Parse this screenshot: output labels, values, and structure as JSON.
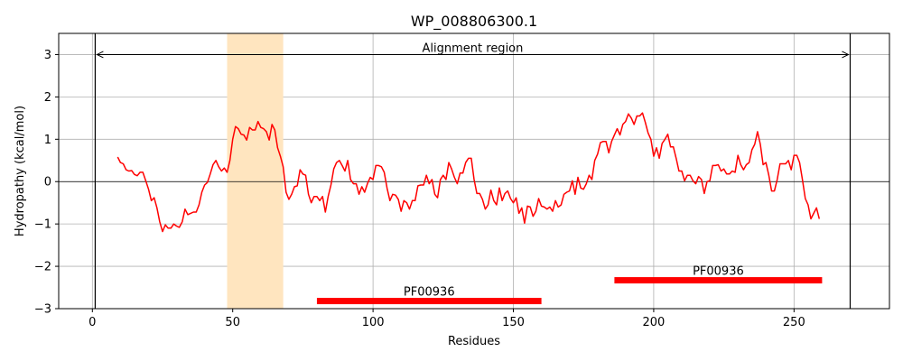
{
  "chart_data": {
    "type": "line",
    "title": "WP_008806300.1",
    "xlabel": "Residues",
    "ylabel": "Hydropathy (kcal/mol)",
    "xlim": [
      -12,
      284
    ],
    "ylim": [
      -3,
      3.5
    ],
    "xticks": [
      0,
      50,
      100,
      150,
      200,
      250
    ],
    "yticks": [
      -3,
      -2,
      -1,
      0,
      1,
      2,
      3
    ],
    "ytick_labels": [
      "−3",
      "−2",
      "−1",
      "0",
      "1",
      "2",
      "3"
    ],
    "grid": true,
    "line_color": "#ff0000",
    "highlight_color": "#ffe5bf",
    "domain_color": "#ff0000",
    "highlight_region": [
      48,
      68
    ],
    "alignment_region": {
      "label": "Alignment region",
      "start": 1,
      "end": 270
    },
    "domains": [
      {
        "label": "PF00936",
        "start": 80,
        "end": 160,
        "y": -2.82
      },
      {
        "label": "PF00936",
        "start": 186,
        "end": 260,
        "y": -2.33
      }
    ],
    "series": [
      {
        "points": [
          [
            9,
            0.58
          ],
          [
            10,
            0.45
          ],
          [
            11,
            0.42
          ],
          [
            12,
            0.28
          ],
          [
            13,
            0.25
          ],
          [
            14,
            0.26
          ],
          [
            15,
            0.17
          ],
          [
            16,
            0.14
          ],
          [
            17,
            0.22
          ],
          [
            18,
            0.22
          ],
          [
            19,
            0.02
          ],
          [
            20,
            -0.18
          ],
          [
            21,
            -0.45
          ],
          [
            22,
            -0.38
          ],
          [
            23,
            -0.62
          ],
          [
            24,
            -0.95
          ],
          [
            25,
            -1.18
          ],
          [
            26,
            -1.02
          ],
          [
            27,
            -1.1
          ],
          [
            28,
            -1.1
          ],
          [
            29,
            -1.0
          ],
          [
            30,
            -1.05
          ],
          [
            31,
            -1.08
          ],
          [
            32,
            -0.95
          ],
          [
            33,
            -0.65
          ],
          [
            34,
            -0.78
          ],
          [
            35,
            -0.75
          ],
          [
            36,
            -0.72
          ],
          [
            37,
            -0.72
          ],
          [
            38,
            -0.55
          ],
          [
            39,
            -0.25
          ],
          [
            40,
            -0.08
          ],
          [
            41,
            -0.02
          ],
          [
            42,
            0.18
          ],
          [
            43,
            0.4
          ],
          [
            44,
            0.5
          ],
          [
            45,
            0.35
          ],
          [
            46,
            0.25
          ],
          [
            47,
            0.32
          ],
          [
            48,
            0.22
          ],
          [
            49,
            0.5
          ],
          [
            50,
            1.0
          ],
          [
            51,
            1.3
          ],
          [
            52,
            1.25
          ],
          [
            53,
            1.12
          ],
          [
            54,
            1.1
          ],
          [
            55,
            0.98
          ],
          [
            56,
            1.28
          ],
          [
            57,
            1.22
          ],
          [
            58,
            1.22
          ],
          [
            59,
            1.42
          ],
          [
            60,
            1.28
          ],
          [
            61,
            1.25
          ],
          [
            62,
            1.18
          ],
          [
            63,
            0.98
          ],
          [
            64,
            1.35
          ],
          [
            65,
            1.22
          ],
          [
            66,
            0.8
          ],
          [
            67,
            0.6
          ],
          [
            68,
            0.35
          ],
          [
            69,
            -0.25
          ],
          [
            70,
            -0.42
          ],
          [
            71,
            -0.3
          ],
          [
            72,
            -0.12
          ],
          [
            73,
            -0.1
          ],
          [
            74,
            0.28
          ],
          [
            75,
            0.18
          ],
          [
            76,
            0.15
          ],
          [
            77,
            -0.3
          ],
          [
            78,
            -0.5
          ],
          [
            79,
            -0.35
          ],
          [
            80,
            -0.35
          ],
          [
            81,
            -0.45
          ],
          [
            82,
            -0.35
          ],
          [
            83,
            -0.72
          ],
          [
            84,
            -0.35
          ],
          [
            85,
            -0.08
          ],
          [
            86,
            0.3
          ],
          [
            87,
            0.45
          ],
          [
            88,
            0.5
          ],
          [
            89,
            0.38
          ],
          [
            90,
            0.25
          ],
          [
            91,
            0.5
          ],
          [
            92,
            0.05
          ],
          [
            93,
            -0.05
          ],
          [
            94,
            -0.05
          ],
          [
            95,
            -0.3
          ],
          [
            96,
            -0.12
          ],
          [
            97,
            -0.25
          ],
          [
            98,
            -0.05
          ],
          [
            99,
            0.1
          ],
          [
            100,
            0.05
          ],
          [
            101,
            0.38
          ],
          [
            102,
            0.38
          ],
          [
            103,
            0.35
          ],
          [
            104,
            0.22
          ],
          [
            105,
            -0.15
          ],
          [
            106,
            -0.45
          ],
          [
            107,
            -0.3
          ],
          [
            108,
            -0.32
          ],
          [
            109,
            -0.42
          ],
          [
            110,
            -0.7
          ],
          [
            111,
            -0.45
          ],
          [
            112,
            -0.5
          ],
          [
            113,
            -0.65
          ],
          [
            114,
            -0.45
          ],
          [
            115,
            -0.45
          ],
          [
            116,
            -0.1
          ],
          [
            117,
            -0.08
          ],
          [
            118,
            -0.08
          ],
          [
            119,
            0.15
          ],
          [
            120,
            -0.05
          ],
          [
            121,
            0.05
          ],
          [
            122,
            -0.3
          ],
          [
            123,
            -0.38
          ],
          [
            124,
            0.05
          ],
          [
            125,
            0.15
          ],
          [
            126,
            0.05
          ],
          [
            127,
            0.45
          ],
          [
            128,
            0.3
          ],
          [
            129,
            0.1
          ],
          [
            130,
            -0.05
          ],
          [
            131,
            0.2
          ],
          [
            132,
            0.2
          ],
          [
            133,
            0.45
          ],
          [
            134,
            0.55
          ],
          [
            135,
            0.55
          ],
          [
            136,
            0.05
          ],
          [
            137,
            -0.28
          ],
          [
            138,
            -0.28
          ],
          [
            139,
            -0.42
          ],
          [
            140,
            -0.65
          ],
          [
            141,
            -0.55
          ],
          [
            142,
            -0.2
          ],
          [
            143,
            -0.45
          ],
          [
            144,
            -0.55
          ],
          [
            145,
            -0.15
          ],
          [
            146,
            -0.45
          ],
          [
            147,
            -0.28
          ],
          [
            148,
            -0.22
          ],
          [
            149,
            -0.4
          ],
          [
            150,
            -0.5
          ],
          [
            151,
            -0.38
          ],
          [
            152,
            -0.75
          ],
          [
            153,
            -0.62
          ],
          [
            154,
            -0.98
          ],
          [
            155,
            -0.58
          ],
          [
            156,
            -0.6
          ],
          [
            157,
            -0.82
          ],
          [
            158,
            -0.7
          ],
          [
            159,
            -0.4
          ],
          [
            160,
            -0.58
          ],
          [
            161,
            -0.6
          ],
          [
            162,
            -0.65
          ],
          [
            163,
            -0.6
          ],
          [
            164,
            -0.7
          ],
          [
            165,
            -0.45
          ],
          [
            166,
            -0.6
          ],
          [
            167,
            -0.55
          ],
          [
            168,
            -0.3
          ],
          [
            169,
            -0.25
          ],
          [
            170,
            -0.22
          ],
          [
            171,
            0.02
          ],
          [
            172,
            -0.3
          ],
          [
            173,
            0.1
          ],
          [
            174,
            -0.15
          ],
          [
            175,
            -0.18
          ],
          [
            176,
            -0.05
          ],
          [
            177,
            0.15
          ],
          [
            178,
            0.05
          ],
          [
            179,
            0.5
          ],
          [
            180,
            0.65
          ],
          [
            181,
            0.92
          ],
          [
            182,
            0.95
          ],
          [
            183,
            0.95
          ],
          [
            184,
            0.68
          ],
          [
            185,
            0.95
          ],
          [
            186,
            1.1
          ],
          [
            187,
            1.25
          ],
          [
            188,
            1.1
          ],
          [
            189,
            1.35
          ],
          [
            190,
            1.42
          ],
          [
            191,
            1.6
          ],
          [
            192,
            1.5
          ],
          [
            193,
            1.35
          ],
          [
            194,
            1.55
          ],
          [
            195,
            1.55
          ],
          [
            196,
            1.62
          ],
          [
            197,
            1.4
          ],
          [
            198,
            1.15
          ],
          [
            199,
            1.0
          ],
          [
            200,
            0.6
          ],
          [
            201,
            0.8
          ],
          [
            202,
            0.55
          ],
          [
            203,
            0.9
          ],
          [
            204,
            1.0
          ],
          [
            205,
            1.12
          ],
          [
            206,
            0.82
          ],
          [
            207,
            0.82
          ],
          [
            208,
            0.55
          ],
          [
            209,
            0.25
          ],
          [
            210,
            0.25
          ],
          [
            211,
            0.02
          ],
          [
            212,
            0.15
          ],
          [
            213,
            0.15
          ],
          [
            214,
            0.02
          ],
          [
            215,
            -0.05
          ],
          [
            216,
            0.12
          ],
          [
            217,
            0.05
          ],
          [
            218,
            -0.28
          ],
          [
            219,
            0.0
          ],
          [
            220,
            0.02
          ],
          [
            221,
            0.38
          ],
          [
            222,
            0.38
          ],
          [
            223,
            0.4
          ],
          [
            224,
            0.25
          ],
          [
            225,
            0.3
          ],
          [
            226,
            0.18
          ],
          [
            227,
            0.18
          ],
          [
            228,
            0.25
          ],
          [
            229,
            0.22
          ],
          [
            230,
            0.62
          ],
          [
            231,
            0.4
          ],
          [
            232,
            0.28
          ],
          [
            233,
            0.4
          ],
          [
            234,
            0.45
          ],
          [
            235,
            0.75
          ],
          [
            236,
            0.88
          ],
          [
            237,
            1.18
          ],
          [
            238,
            0.88
          ],
          [
            239,
            0.4
          ],
          [
            240,
            0.45
          ],
          [
            241,
            0.15
          ],
          [
            242,
            -0.22
          ],
          [
            243,
            -0.22
          ],
          [
            244,
            0.05
          ],
          [
            245,
            0.42
          ],
          [
            246,
            0.42
          ],
          [
            247,
            0.42
          ],
          [
            248,
            0.5
          ],
          [
            249,
            0.28
          ],
          [
            250,
            0.62
          ],
          [
            251,
            0.62
          ],
          [
            252,
            0.45
          ],
          [
            253,
            0.05
          ],
          [
            254,
            -0.4
          ],
          [
            255,
            -0.55
          ],
          [
            256,
            -0.88
          ],
          [
            257,
            -0.75
          ],
          [
            258,
            -0.62
          ],
          [
            259,
            -0.88
          ]
        ]
      }
    ]
  }
}
